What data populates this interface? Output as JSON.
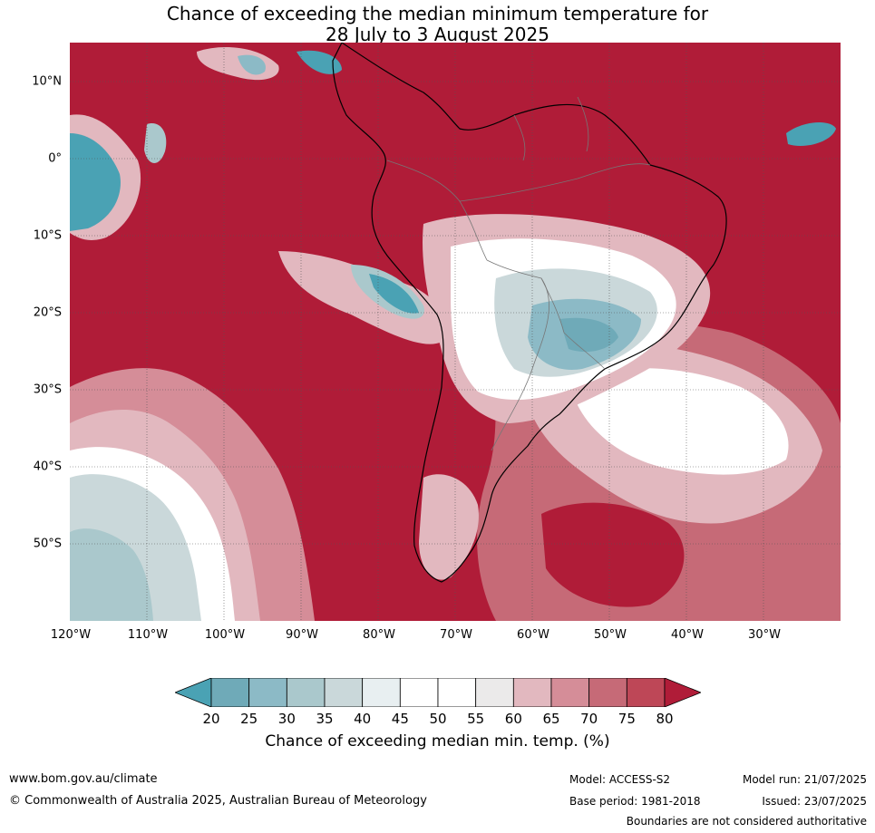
{
  "title_line1": "Chance of exceeding the median minimum temperature for",
  "title_line2": "28 July to 3 August 2025",
  "lat_labels": [
    "10°N",
    "0°",
    "10°S",
    "20°S",
    "30°S",
    "40°S",
    "50°S"
  ],
  "lon_labels": [
    "120°W",
    "110°W",
    "100°W",
    "90°W",
    "80°W",
    "70°W",
    "60°W",
    "50°W",
    "40°W",
    "30°W"
  ],
  "colorbar": {
    "ticks": [
      "20",
      "25",
      "30",
      "35",
      "40",
      "45",
      "50",
      "55",
      "60",
      "65",
      "70",
      "75",
      "80"
    ],
    "colors": [
      "#4aa2b4",
      "#6faab8",
      "#8cbac6",
      "#aac8cc",
      "#cad8da",
      "#e8eff1",
      "#ffffff",
      "#ffffff",
      "#ebeaea",
      "#e2b8bf",
      "#d58d98",
      "#c66a77",
      "#be4757",
      "#b01c38"
    ],
    "label": "Chance of exceeding median min. temp. (%)"
  },
  "footer": {
    "website": "www.bom.gov.au/climate",
    "copyright": "© Commonwealth of Australia 2025, Australian Bureau of Meteorology",
    "model": "Model: ACCESS-S2",
    "base_period": "Base period: 1981-2018",
    "model_run": "Model run: 21/07/2025",
    "issued": "Issued: 23/07/2025",
    "disclaimer": "Boundaries are not considered authoritative"
  }
}
